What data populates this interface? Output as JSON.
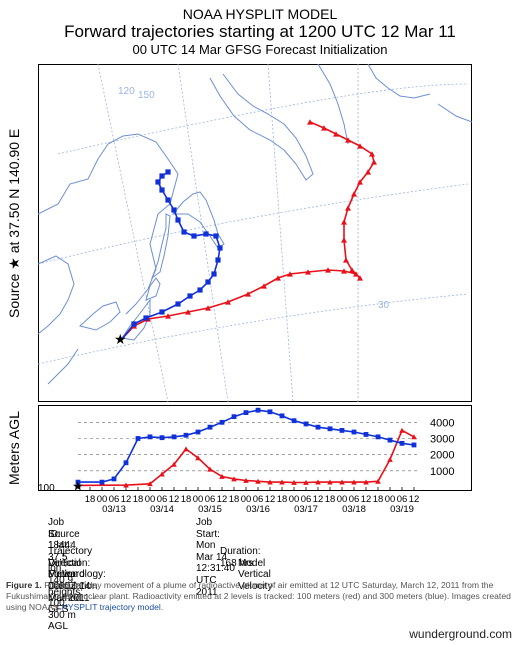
{
  "header": {
    "line1": "NOAA HYSPLIT MODEL",
    "line2": "Forward trajectories starting at 1200 UTC 12 Mar 11",
    "line3": "00 UTC 14 Mar    GFSG  Forecast Initialization"
  },
  "side_label": {
    "source_prefix": "Source",
    "star": "★",
    "at": "at",
    "lat": "37.50 N",
    "lon": "140.90 E"
  },
  "map": {
    "longitude_labels": [
      "120",
      "150"
    ],
    "latitude_labels": [
      "30"
    ]
  },
  "colors": {
    "low": "#e8101a",
    "high": "#1030d8",
    "map_line": "#6e8fd0",
    "grid": "#9cb4e6"
  },
  "chart_data": {
    "type": "line",
    "title": "",
    "ylabel": "Meters AGL",
    "y_ticks": [
      1000,
      2000,
      3000,
      4000
    ],
    "y_origin_label": "100",
    "ylim": [
      0,
      4700
    ],
    "x_date_labels": [
      "03/13",
      "03/14",
      "03/15",
      "03/16",
      "03/17",
      "03/18",
      "03/19"
    ],
    "x_hour_labels": [
      "18",
      "00",
      "06",
      "12",
      "18",
      "00",
      "06",
      "12",
      "18",
      "00",
      "06",
      "12",
      "18",
      "00",
      "06",
      "12",
      "18",
      "00",
      "06",
      "12",
      "18",
      "00",
      "06",
      "12",
      "18",
      "00",
      "06",
      "12"
    ],
    "x_unit": "hours after 1200 UTC 12 Mar 11",
    "duration_hrs": 168,
    "series": [
      {
        "color": "red",
        "x": [
          0,
          24,
          36,
          42,
          48,
          54,
          60,
          66,
          72,
          78,
          84,
          90,
          96,
          102,
          108,
          114,
          120,
          126,
          132,
          138,
          144,
          150,
          156,
          162,
          168
        ],
        "values": [
          100,
          120,
          200,
          800,
          1400,
          2350,
          1800,
          1100,
          650,
          500,
          400,
          350,
          300,
          300,
          280,
          280,
          300,
          300,
          300,
          300,
          300,
          350,
          1700,
          3500,
          3100
        ]
      },
      {
        "color": "blue",
        "x": [
          0,
          12,
          18,
          24,
          30,
          36,
          42,
          48,
          54,
          60,
          66,
          72,
          78,
          84,
          90,
          96,
          102,
          108,
          114,
          120,
          126,
          132,
          138,
          144,
          150,
          156,
          162,
          168
        ],
        "values": [
          300,
          300,
          500,
          1500,
          3000,
          3100,
          3050,
          3100,
          3200,
          3400,
          3700,
          4000,
          4350,
          4600,
          4750,
          4650,
          4400,
          4100,
          3900,
          3700,
          3600,
          3500,
          3400,
          3250,
          3100,
          2900,
          2700,
          2600
        ]
      }
    ]
  },
  "info": {
    "job_id": "Job ID: 18444",
    "job_start": "Job Start: Mon Mar 14 12:31:40 UTC 2011",
    "source": "Source 1 lat.: 37.5  lon.: 140.9  heights: 100, 300 m AGL",
    "direction": "Trajectory Direction: Forward",
    "duration": "Duration: 168 hrs",
    "vertical": "Vertical Motion Calculation Method:",
    "vertical_val": "Model Vertical Velocity",
    "meteorology": "Meteorology: 0000Z 14 Mar 2011 - GFS"
  },
  "caption": {
    "figure": "Figure 1.",
    "text": " Forecast 7-day movement of a plume of radioactive plume of air emitted at 12 UTC Saturday, March 12, 2011 from the Fukushima Daiichi nuclear plant. Radioactivity emitted at 2 levels is tracked: 100 meters (red) and 300 meters (blue). Images created using NOAA's ",
    "link": "HYSPLIT trajectory model",
    "end": "."
  },
  "credit": "wunderground.com"
}
